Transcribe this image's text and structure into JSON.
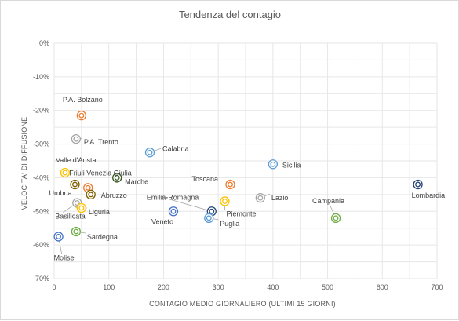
{
  "chart_data": {
    "type": "scatter",
    "title": "Tendenza del contagio",
    "xlabel": "CONTAGIO MEDIO GIORNALIERO (ULTIMI 15 GIORNI)",
    "ylabel": "VELOCITA' DI DIFFUSIONE",
    "xlim": [
      0,
      700
    ],
    "ylim": [
      -70,
      0
    ],
    "x_ticks": [
      "0",
      "100",
      "200",
      "300",
      "400",
      "500",
      "600",
      "700"
    ],
    "y_ticks": [
      "0%",
      "-10%",
      "-20%",
      "-30%",
      "-40%",
      "-50%",
      "-60%",
      "-70%"
    ],
    "grid": true,
    "legend": "none",
    "points": [
      {
        "label": "P.A. Bolzano",
        "x": 50,
        "y": -21.5,
        "color": "#ed7d31"
      },
      {
        "label": "P.A. Trento",
        "x": 40,
        "y": -28.5,
        "color": "#a5a5a5"
      },
      {
        "label": "Valle d'Aosta",
        "x": 20,
        "y": -38.5,
        "color": "#ffc000"
      },
      {
        "label": "Friuli Venezia Giulia",
        "x": 62,
        "y": -43,
        "color": "#ed7d31"
      },
      {
        "label": "Umbria",
        "x": 38,
        "y": -42,
        "color": "#7f6000"
      },
      {
        "label": "Abruzzo",
        "x": 67,
        "y": -45,
        "color": "#7f6000"
      },
      {
        "label": "Marche",
        "x": 115,
        "y": -40,
        "color": "#375623"
      },
      {
        "label": "Calabria",
        "x": 175,
        "y": -32.5,
        "color": "#5b9bd5"
      },
      {
        "label": "Basilicata",
        "x": 42,
        "y": -47.5,
        "color": "#a5a5a5"
      },
      {
        "label": "Liguria",
        "x": 50,
        "y": -49,
        "color": "#ffc000"
      },
      {
        "label": "Sardegna",
        "x": 40,
        "y": -56,
        "color": "#70ad47"
      },
      {
        "label": "Molise",
        "x": 8,
        "y": -57.5,
        "color": "#4472c4"
      },
      {
        "label": "Veneto",
        "x": 218,
        "y": -50,
        "color": "#4472c4"
      },
      {
        "label": "Emilia-Romagna",
        "x": 288,
        "y": -50,
        "color": "#264478"
      },
      {
        "label": "Puglia",
        "x": 283,
        "y": -52,
        "color": "#5b9bd5"
      },
      {
        "label": "Piemonte",
        "x": 312,
        "y": -47,
        "color": "#ffc000"
      },
      {
        "label": "Toscana",
        "x": 322,
        "y": -42,
        "color": "#ed7d31"
      },
      {
        "label": "Lazio",
        "x": 377,
        "y": -46,
        "color": "#a5a5a5"
      },
      {
        "label": "Sicilia",
        "x": 400,
        "y": -36,
        "color": "#5b9bd5"
      },
      {
        "label": "Campania",
        "x": 515,
        "y": -52,
        "color": "#70ad47"
      },
      {
        "label": "Lombardia",
        "x": 665,
        "y": -42,
        "color": "#264478"
      }
    ]
  }
}
